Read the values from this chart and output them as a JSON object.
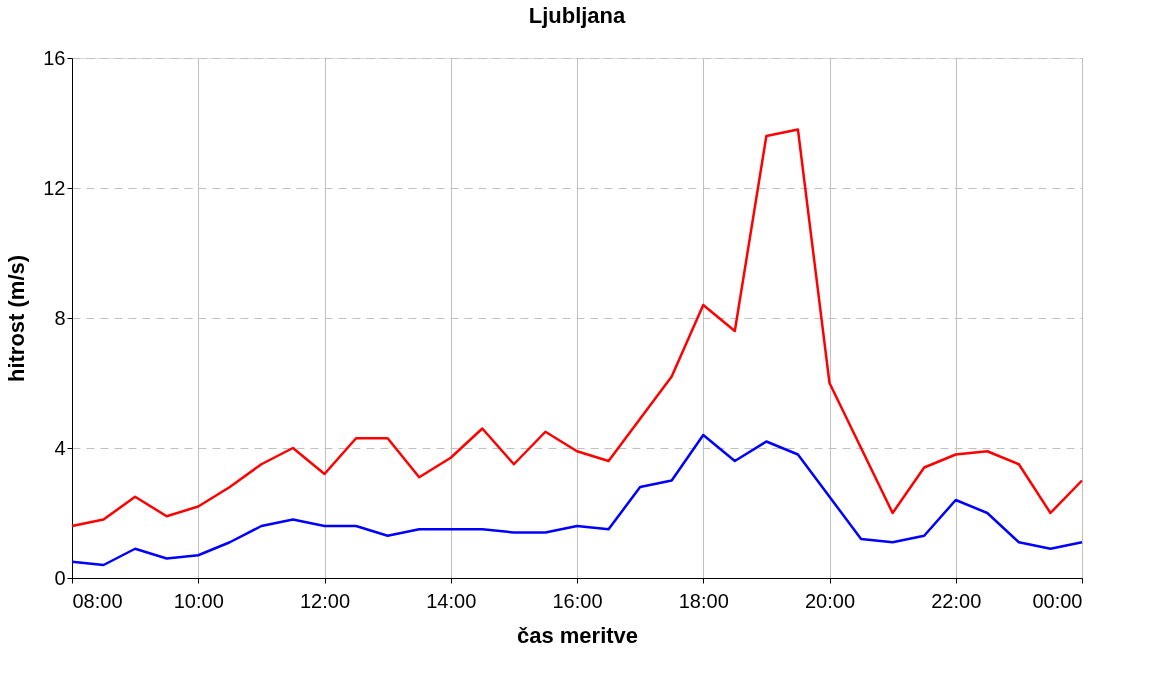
{
  "chart_data": {
    "type": "line",
    "title": "Ljubljana",
    "xlabel": "čas meritve",
    "ylabel": "hitrost (m/s)",
    "x": [
      8,
      8.5,
      9,
      9.5,
      10,
      10.5,
      11,
      11.5,
      12,
      12.5,
      13,
      13.5,
      14,
      14.5,
      15,
      15.5,
      16,
      16.5,
      17,
      17.5,
      18,
      18.5,
      19,
      19.5,
      20,
      20.5,
      21,
      21.5,
      22,
      22.5,
      23,
      23.5,
      24
    ],
    "series": [
      {
        "color": "#ff0000",
        "values": [
          1.6,
          1.8,
          2.5,
          1.9,
          2.2,
          2.8,
          3.5,
          4.0,
          3.2,
          4.3,
          4.3,
          3.1,
          3.7,
          4.6,
          3.5,
          4.5,
          3.9,
          3.6,
          4.9,
          6.2,
          8.4,
          7.6,
          13.6,
          13.8,
          6.0,
          4.0,
          2.0,
          3.4,
          3.8,
          3.9,
          3.5,
          2.0,
          3.0
        ]
      },
      {
        "color": "#0000ff",
        "values": [
          0.5,
          0.4,
          0.9,
          0.6,
          0.7,
          1.1,
          1.6,
          1.8,
          1.6,
          1.6,
          1.3,
          1.5,
          1.5,
          1.5,
          1.4,
          1.4,
          1.6,
          1.5,
          2.8,
          3.0,
          4.4,
          3.6,
          4.2,
          3.8,
          2.5,
          1.2,
          1.1,
          1.3,
          2.4,
          2.0,
          1.1,
          0.9,
          1.1
        ]
      }
    ],
    "xlim": [
      8,
      24
    ],
    "xticks": [
      {
        "value": 8,
        "label": "08:00"
      },
      {
        "value": 10,
        "label": "10:00"
      },
      {
        "value": 12,
        "label": "12:00"
      },
      {
        "value": 14,
        "label": "14:00"
      },
      {
        "value": 16,
        "label": "16:00"
      },
      {
        "value": 18,
        "label": "18:00"
      },
      {
        "value": 20,
        "label": "20:00"
      },
      {
        "value": 22,
        "label": "22:00"
      },
      {
        "value": 24,
        "label": "00:00"
      }
    ],
    "ylim": [
      0,
      16
    ],
    "yticks": [
      0,
      4,
      8,
      12,
      16
    ],
    "grid": true,
    "legend": false,
    "marker": "none",
    "line_style": "solid"
  }
}
